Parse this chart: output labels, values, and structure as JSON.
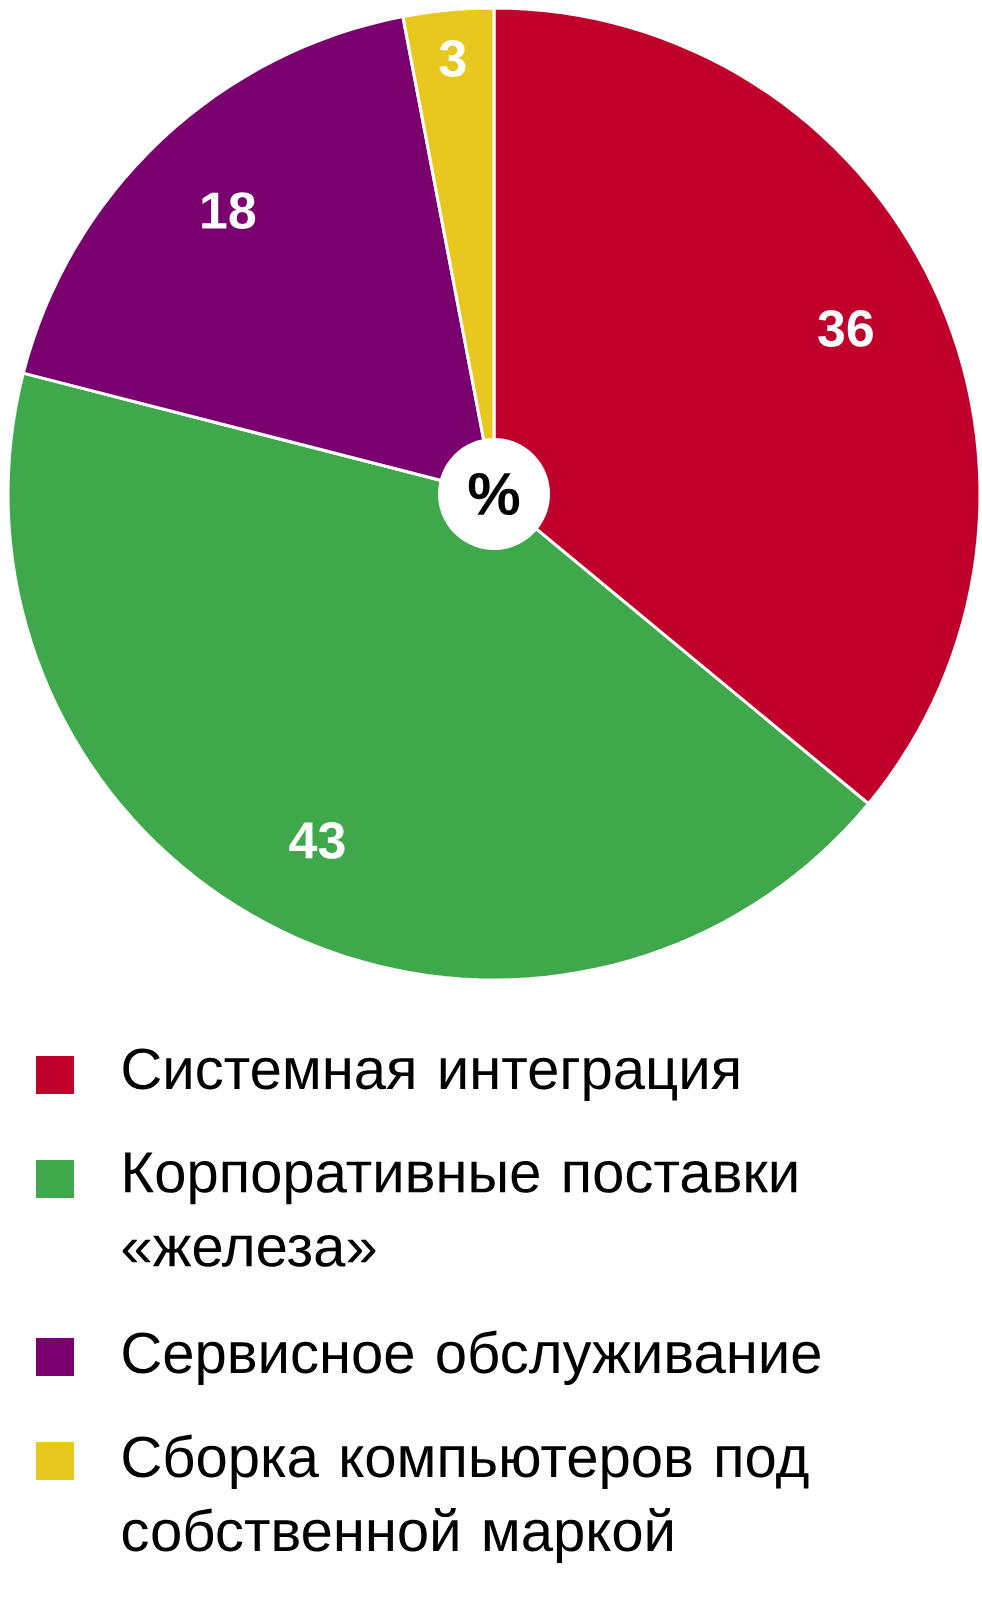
{
  "chart_data": {
    "type": "pie",
    "title": "%",
    "categories": [
      "Системная интеграция",
      "Корпоративные поставки «железа»",
      "Сервисное обслуживание",
      "Сборка компьютеров под собственной маркой"
    ],
    "values": [
      36,
      43,
      18,
      3
    ],
    "colors": [
      "#c0002a",
      "#3fa84a",
      "#7a0070",
      "#e8c81e"
    ],
    "data_labels": true,
    "legend": "bottom"
  }
}
